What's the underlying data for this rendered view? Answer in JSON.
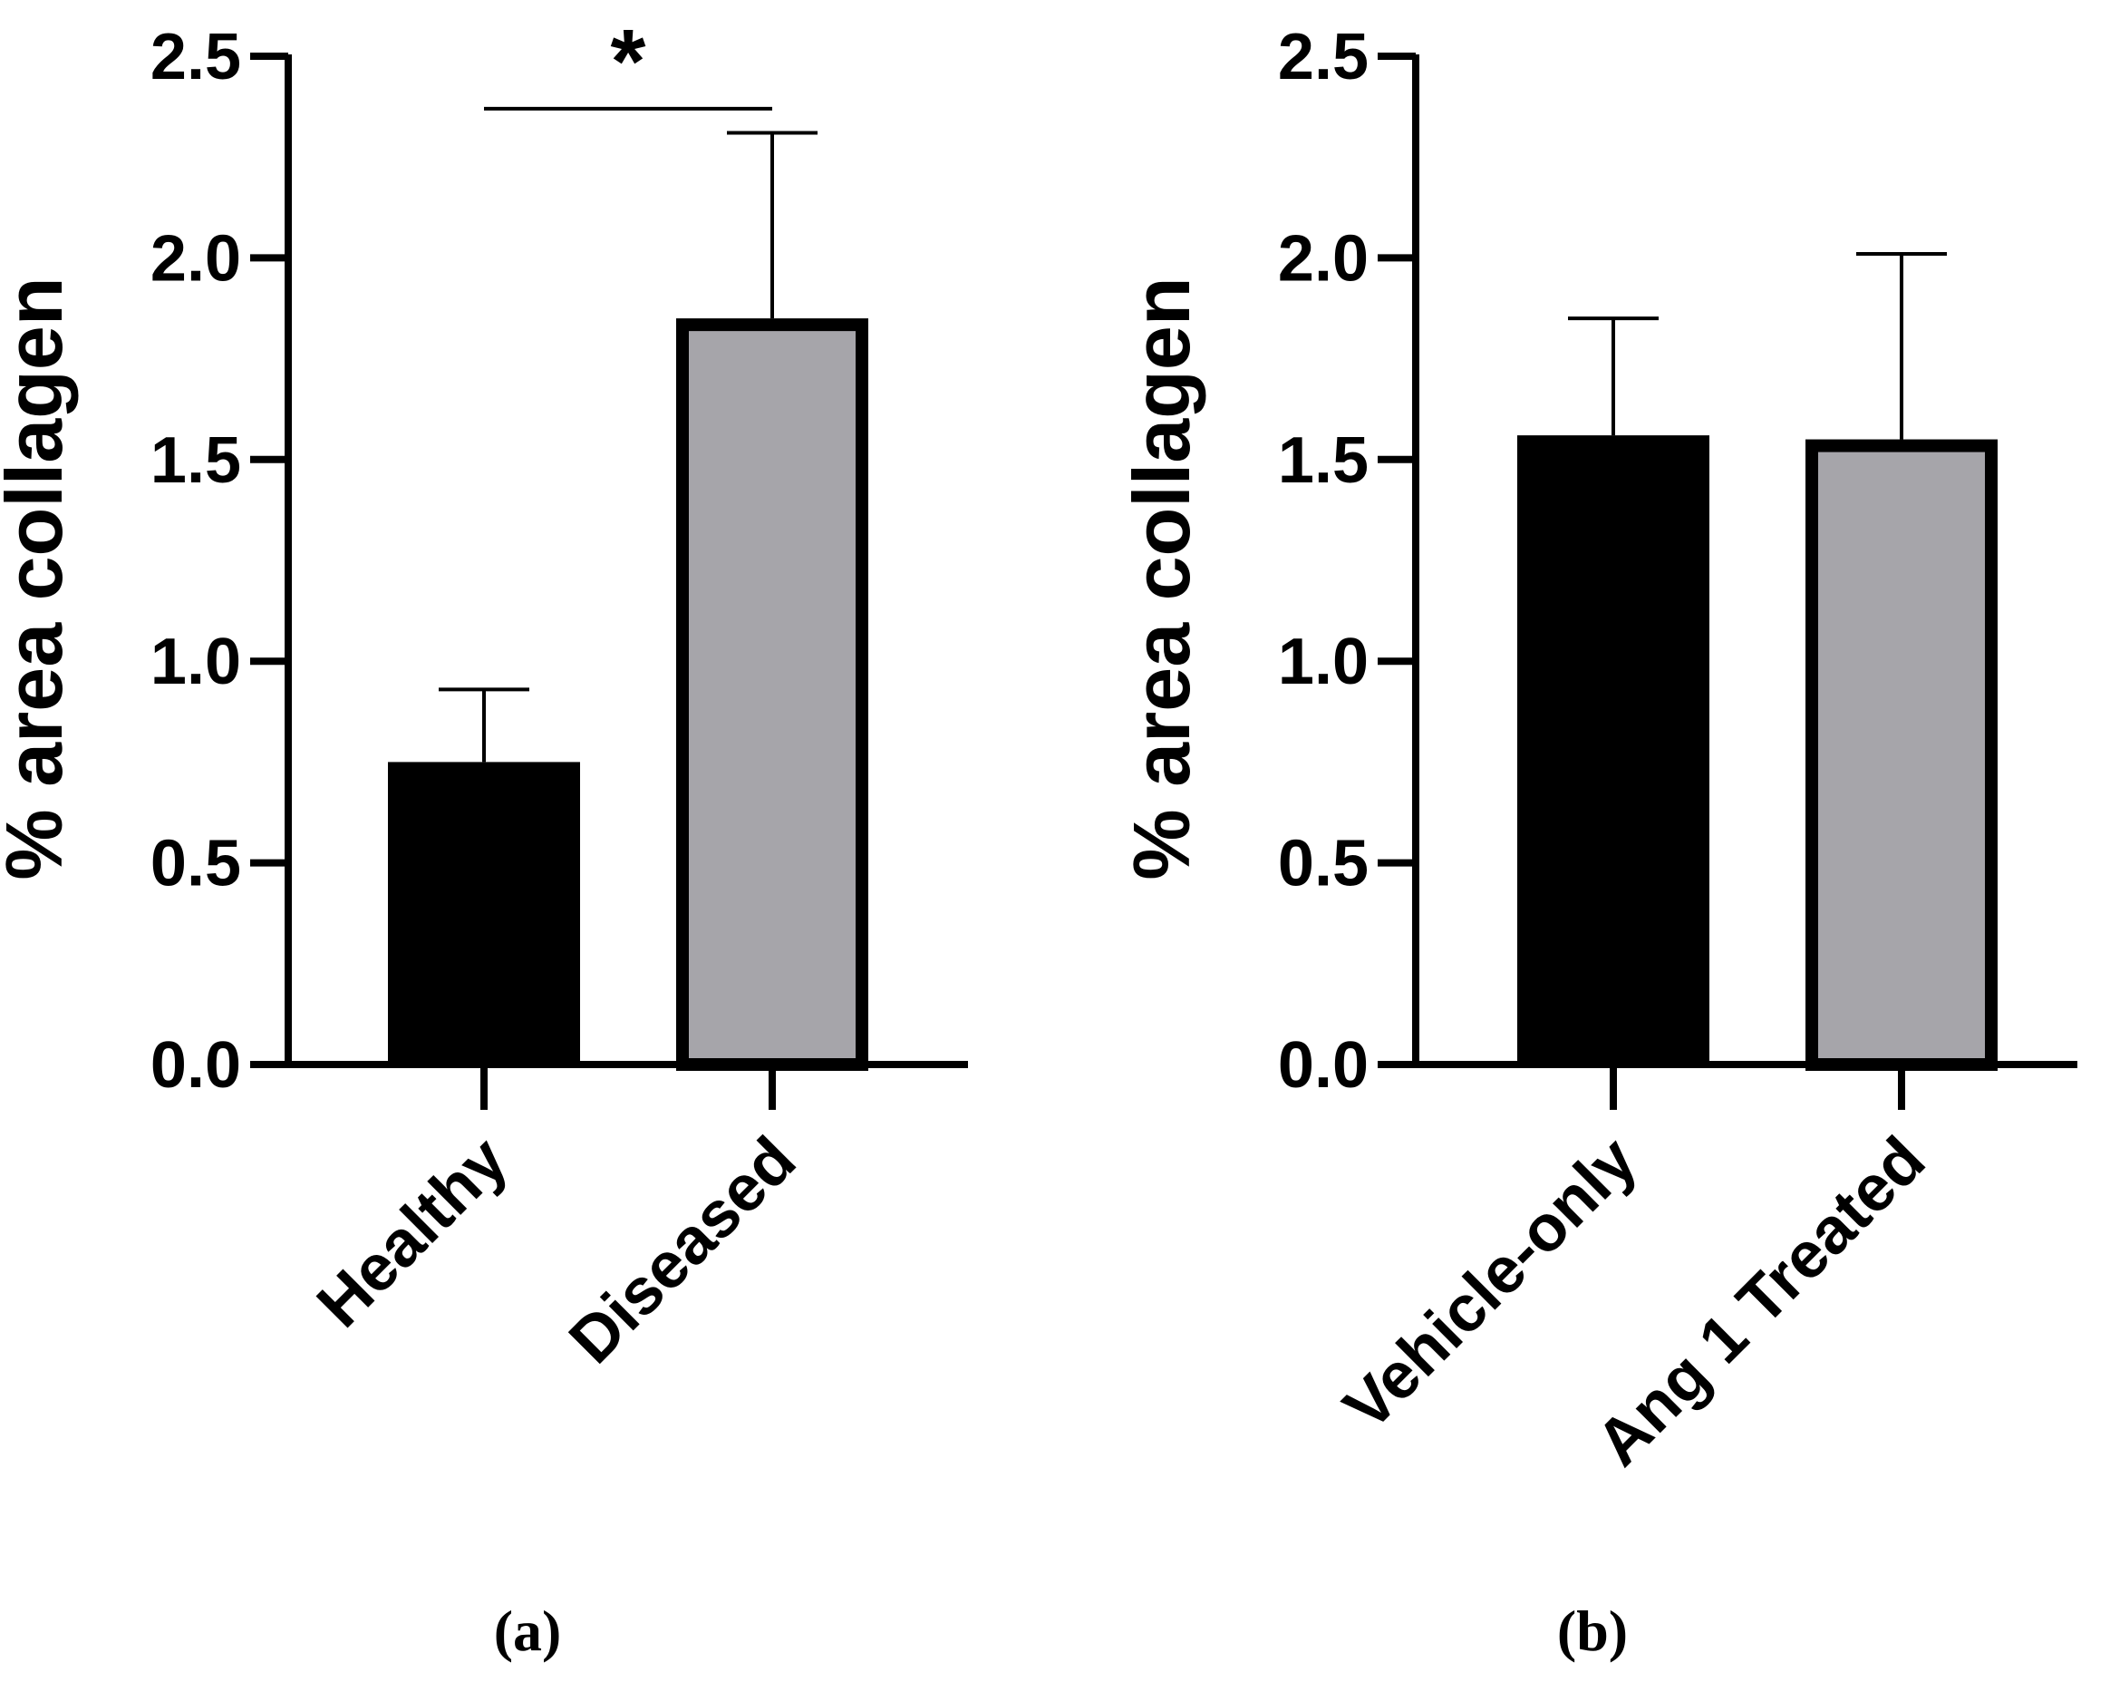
{
  "chart_data": [
    {
      "type": "bar",
      "panel_label": "(a)",
      "ylabel": "% area collagen",
      "ylim": [
        0,
        2.5
      ],
      "yticks": [
        "0.0",
        "0.5",
        "1.0",
        "1.5",
        "2.0",
        "2.5"
      ],
      "categories": [
        "Healthy",
        "Diseased"
      ],
      "values": [
        0.75,
        1.85
      ],
      "errors": [
        0.18,
        0.46
      ],
      "bar_colors": [
        "#000000",
        "#a6a5aa"
      ],
      "significance": {
        "label": "*",
        "between": [
          0,
          1
        ],
        "y": 2.37
      }
    },
    {
      "type": "bar",
      "panel_label": "(b)",
      "ylabel": "% area collagen",
      "ylim": [
        0,
        2.5
      ],
      "yticks": [
        "0.0",
        "0.5",
        "1.0",
        "1.5",
        "2.0",
        "2.5"
      ],
      "categories": [
        "Vehicle-only",
        "Ang 1 Treated"
      ],
      "values": [
        1.56,
        1.55
      ],
      "errors": [
        0.29,
        0.46
      ],
      "bar_colors": [
        "#000000",
        "#a6a5aa"
      ]
    }
  ]
}
